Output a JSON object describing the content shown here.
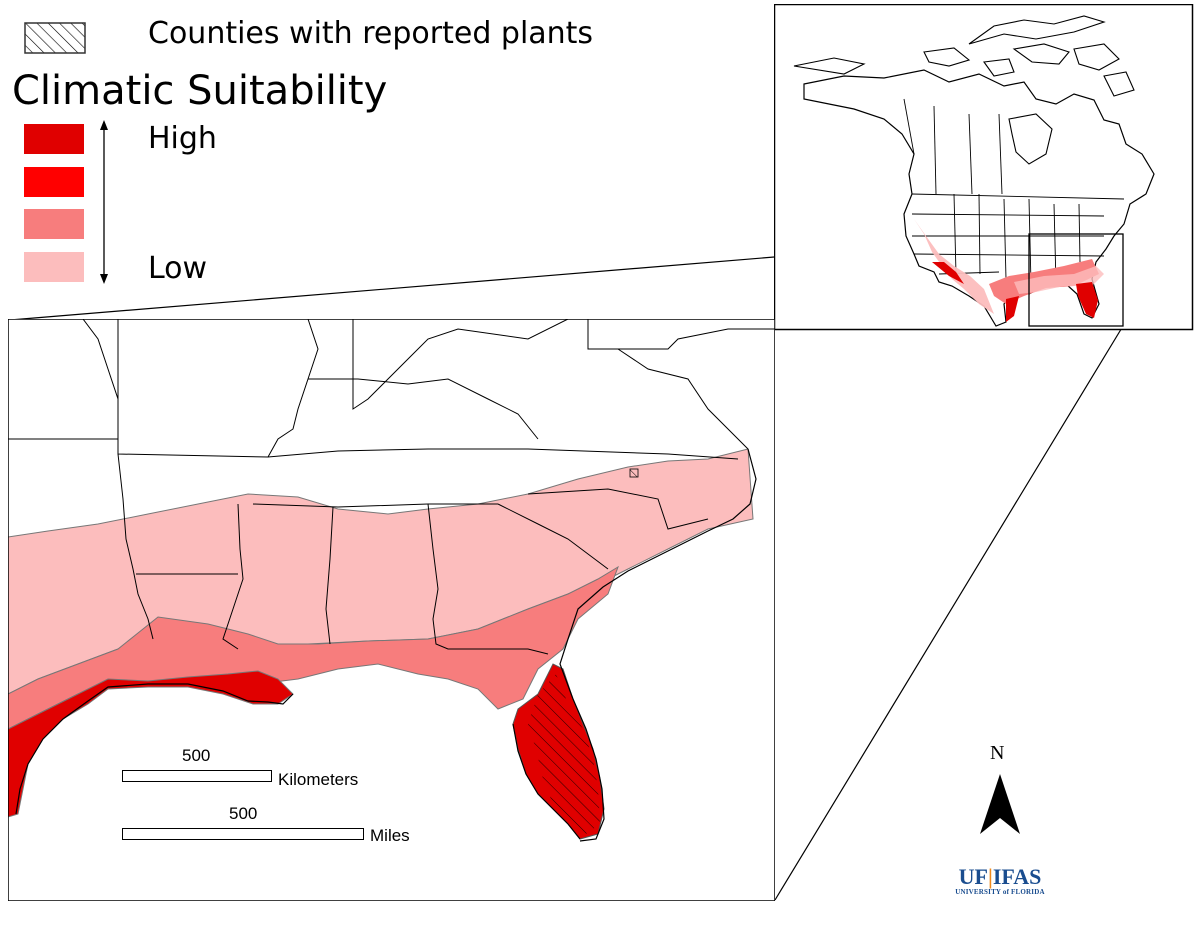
{
  "legend": {
    "hatch_label": "Counties with reported plants",
    "title": "Climatic Suitability",
    "high_label": "High",
    "low_label": "Low",
    "classes": [
      {
        "level": "high",
        "color": "#e00000"
      },
      {
        "level": "medium-high",
        "color": "#ff0000"
      },
      {
        "level": "medium-low",
        "color": "#f77d7d"
      },
      {
        "level": "low",
        "color": "#fcbdbd"
      }
    ]
  },
  "scale": {
    "km_value": "500",
    "km_unit": "Kilometers",
    "mi_value": "500",
    "mi_unit": "Miles"
  },
  "north": {
    "label": "N"
  },
  "logo": {
    "main_left": "UF",
    "main_right": "IFAS",
    "sub": "UNIVERSITY of FLORIDA"
  }
}
